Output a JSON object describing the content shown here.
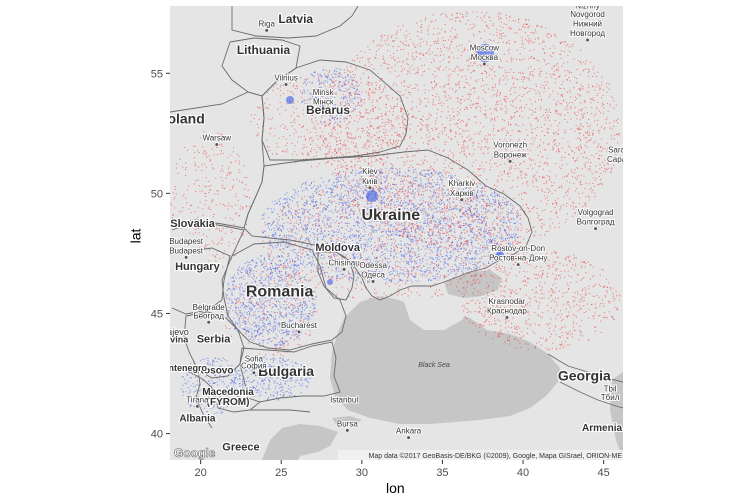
{
  "axes": {
    "xlabel": "lon",
    "ylabel": "lat",
    "x_ticks": [
      20,
      25,
      30,
      35,
      40,
      45
    ],
    "y_ticks": [
      40,
      45,
      50,
      55
    ],
    "xlim": [
      18.1,
      46.2
    ],
    "ylim": [
      38.9,
      57.8
    ]
  },
  "map": {
    "attribution": "Map data ©2017 GeoBasis-DE/BKG (©2009), Google, Mapa GISrael, ORION-ME",
    "logo": "Google",
    "sea_label": "Black Sea",
    "countries": [
      {
        "label": "Latvia",
        "lon": 25.9,
        "lat": 57.1,
        "bold": true,
        "size": 12
      },
      {
        "label": "Lithuania",
        "lon": 23.9,
        "lat": 55.8,
        "bold": true,
        "size": 12
      },
      {
        "label": "Belarus",
        "lon": 27.9,
        "lat": 53.3,
        "bold": true,
        "size": 12
      },
      {
        "label": "oland",
        "lon": 19.1,
        "lat": 52.9,
        "bold": true,
        "size": 14
      },
      {
        "label": "Ukraine",
        "lon": 31.8,
        "lat": 48.9,
        "bold": true,
        "size": 16
      },
      {
        "label": "Slovakia",
        "lon": 19.5,
        "lat": 48.6,
        "bold": true,
        "size": 11
      },
      {
        "label": "Hungary",
        "lon": 19.8,
        "lat": 46.8,
        "bold": true,
        "size": 11
      },
      {
        "label": "Moldova",
        "lon": 28.5,
        "lat": 47.6,
        "bold": true,
        "size": 11
      },
      {
        "label": "Romania",
        "lon": 24.9,
        "lat": 45.7,
        "bold": true,
        "size": 16
      },
      {
        "label": "Serbia",
        "lon": 20.8,
        "lat": 43.8,
        "bold": true,
        "size": 11
      },
      {
        "label": "Kosovo",
        "lon": 20.9,
        "lat": 42.5,
        "bold": true,
        "size": 10
      },
      {
        "label": "Bulgaria",
        "lon": 25.3,
        "lat": 42.4,
        "bold": true,
        "size": 14
      },
      {
        "label": "Macedonia",
        "lon": 21.7,
        "lat": 41.6,
        "bold": true,
        "size": 10
      },
      {
        "label": "(FYROM)",
        "lon": 21.7,
        "lat": 41.2,
        "bold": true,
        "size": 10
      },
      {
        "label": "Albania",
        "lon": 19.8,
        "lat": 40.5,
        "bold": true,
        "size": 10
      },
      {
        "label": "Greece",
        "lon": 22.5,
        "lat": 39.3,
        "bold": true,
        "size": 11
      },
      {
        "label": "Georgia",
        "lon": 43.8,
        "lat": 42.2,
        "bold": true,
        "size": 14
      },
      {
        "label": "Armenia",
        "lon": 44.9,
        "lat": 40.1,
        "bold": true,
        "size": 10
      },
      {
        "label": "Montenegro",
        "lon": 18.8,
        "lat": 42.6,
        "bold": true,
        "size": 9
      },
      {
        "label": "ovina",
        "lon": 18.5,
        "lat": 43.8,
        "bold": true,
        "size": 9
      },
      {
        "label": "rajevo",
        "lon": 18.5,
        "lat": 44.1,
        "bold": false,
        "size": 9
      }
    ],
    "cities": [
      {
        "label": "Riga",
        "lon": 24.1,
        "lat": 56.95,
        "dot": true
      },
      {
        "label": "Vilnius",
        "lon": 25.3,
        "lat": 54.7,
        "dot": true
      },
      {
        "label": "Minsk",
        "lon": 27.6,
        "lat": 54.1,
        "dot": false
      },
      {
        "label": "Мінск",
        "lon": 27.6,
        "lat": 53.7,
        "dot": true
      },
      {
        "label": "Warsaw",
        "lon": 21.0,
        "lat": 52.2,
        "dot": true
      },
      {
        "label": "Moscow",
        "lon": 37.6,
        "lat": 55.95,
        "dot": false
      },
      {
        "label": "Москва",
        "lon": 37.6,
        "lat": 55.55,
        "dot": true
      },
      {
        "label": "Nizhny",
        "lon": 44.0,
        "lat": 57.7,
        "dot": false
      },
      {
        "label": "Novgorod",
        "lon": 44.0,
        "lat": 57.35,
        "dot": false
      },
      {
        "label": "Нижний",
        "lon": 44.0,
        "lat": 56.95,
        "dot": false
      },
      {
        "label": "Новгород",
        "lon": 44.0,
        "lat": 56.55,
        "dot": true
      },
      {
        "label": "Voronezh",
        "lon": 39.2,
        "lat": 51.9,
        "dot": false
      },
      {
        "label": "Воронеж",
        "lon": 39.2,
        "lat": 51.5,
        "dot": true
      },
      {
        "label": "Sara",
        "lon": 45.8,
        "lat": 51.7,
        "dot": false
      },
      {
        "label": "Сара",
        "lon": 45.8,
        "lat": 51.3,
        "dot": false
      },
      {
        "label": "Kiev",
        "lon": 30.5,
        "lat": 50.8,
        "dot": false
      },
      {
        "label": "Київ",
        "lon": 30.5,
        "lat": 50.4,
        "dot": true
      },
      {
        "label": "Kharkiv",
        "lon": 36.2,
        "lat": 50.3,
        "dot": false
      },
      {
        "label": "Харків",
        "lon": 36.2,
        "lat": 49.9,
        "dot": true
      },
      {
        "label": "Volgograd",
        "lon": 44.5,
        "lat": 49.1,
        "dot": false
      },
      {
        "label": "Волгоград",
        "lon": 44.5,
        "lat": 48.7,
        "dot": true
      },
      {
        "label": "Budapest",
        "lon": 19.1,
        "lat": 47.9,
        "dot": false
      },
      {
        "label": "Budapest",
        "lon": 19.1,
        "lat": 47.5,
        "dot": true
      },
      {
        "label": "Chisinau",
        "lon": 28.9,
        "lat": 47.0,
        "dot": true
      },
      {
        "label": "Odessa",
        "lon": 30.7,
        "lat": 46.9,
        "dot": false
      },
      {
        "label": "Одеса",
        "lon": 30.7,
        "lat": 46.5,
        "dot": true
      },
      {
        "label": "Rostov-on-Don",
        "lon": 39.7,
        "lat": 47.6,
        "dot": false
      },
      {
        "label": "Ростов-на-Дону",
        "lon": 39.7,
        "lat": 47.2,
        "dot": true
      },
      {
        "label": "Krasnodar",
        "lon": 39.0,
        "lat": 45.4,
        "dot": false
      },
      {
        "label": "Краснодар",
        "lon": 39.0,
        "lat": 45.0,
        "dot": true
      },
      {
        "label": "Belgrade",
        "lon": 20.5,
        "lat": 45.15,
        "dot": false
      },
      {
        "label": "Београд",
        "lon": 20.5,
        "lat": 44.8,
        "dot": true
      },
      {
        "label": "Bucharest",
        "lon": 26.1,
        "lat": 44.4,
        "dot": true
      },
      {
        "label": "Sofia",
        "lon": 23.3,
        "lat": 43.0,
        "dot": false
      },
      {
        "label": "София",
        "lon": 23.3,
        "lat": 42.7,
        "dot": true
      },
      {
        "label": "Tirana",
        "lon": 19.8,
        "lat": 41.3,
        "dot": true
      },
      {
        "label": "Istanbul",
        "lon": 28.9,
        "lat": 41.3,
        "dot": false
      },
      {
        "label": "Bursa",
        "lon": 29.1,
        "lat": 40.3,
        "dot": true
      },
      {
        "label": "Ankara",
        "lon": 32.9,
        "lat": 40.0,
        "dot": true
      },
      {
        "label": "Tbil",
        "lon": 45.4,
        "lat": 41.75,
        "dot": false
      },
      {
        "label": "Тбил",
        "lon": 45.4,
        "lat": 41.4,
        "dot": false
      }
    ],
    "colors": {
      "land": "#e5e5e5",
      "water": "#c6c6c6",
      "border": "#6b6b6b",
      "point_red": "#f03030",
      "point_blue": "#3a5ae8"
    }
  }
}
